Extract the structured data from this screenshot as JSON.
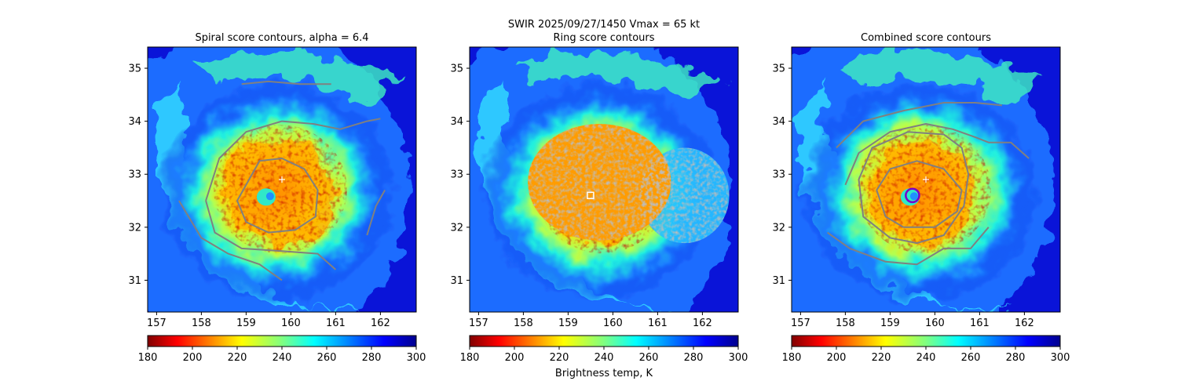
{
  "suptitle": {
    "line1": "SWIR  2025/09/27/1450    Vmax = 65 kt",
    "line2": "Ring score contours"
  },
  "chart_data": [
    {
      "type": "heatmap",
      "title": "Spiral score contours, alpha =  6.4",
      "xlim": [
        156.8,
        162.8
      ],
      "ylim": [
        30.4,
        35.4
      ],
      "xticks": [
        "157",
        "158",
        "159",
        "160",
        "161",
        "162"
      ],
      "yticks": [
        "31",
        "32",
        "33",
        "34",
        "35"
      ],
      "storm_center": [
        159.5,
        32.6
      ],
      "marker": {
        "shape": "plus",
        "lon": 159.8,
        "lat": 32.9
      },
      "colorbar": {
        "vmin": 180,
        "vmax": 300,
        "ticks": [
          "180",
          "200",
          "220",
          "240",
          "260",
          "280",
          "300"
        ],
        "label": "",
        "cmap": "jet_r"
      },
      "contours": [
        [
          [
            159.0,
            32.8
          ],
          [
            159.3,
            33.25
          ],
          [
            159.8,
            33.3
          ],
          [
            160.3,
            33.1
          ],
          [
            160.6,
            32.7
          ],
          [
            160.55,
            32.2
          ],
          [
            160.1,
            31.95
          ],
          [
            159.5,
            31.9
          ],
          [
            159.0,
            32.1
          ],
          [
            158.8,
            32.5
          ],
          [
            159.0,
            32.8
          ]
        ],
        [
          [
            158.1,
            32.5
          ],
          [
            158.4,
            33.3
          ],
          [
            159.0,
            33.8
          ],
          [
            159.8,
            34.0
          ],
          [
            160.5,
            33.95
          ],
          [
            161.1,
            33.85
          ],
          [
            161.7,
            34.0
          ],
          [
            162.0,
            34.05
          ]
        ],
        [
          [
            158.1,
            32.5
          ],
          [
            158.3,
            31.9
          ],
          [
            158.9,
            31.6
          ],
          [
            159.8,
            31.55
          ],
          [
            160.6,
            31.5
          ],
          [
            161.0,
            31.2
          ]
        ],
        [
          [
            157.5,
            32.5
          ],
          [
            158.0,
            31.8
          ],
          [
            158.6,
            31.5
          ],
          [
            159.3,
            31.3
          ],
          [
            159.8,
            31.0
          ]
        ],
        [
          [
            158.9,
            34.7
          ],
          [
            159.5,
            34.75
          ],
          [
            160.2,
            34.7
          ],
          [
            160.9,
            34.7
          ]
        ],
        [
          [
            161.7,
            31.85
          ],
          [
            161.9,
            32.4
          ],
          [
            162.1,
            32.7
          ]
        ]
      ]
    },
    {
      "type": "heatmap",
      "title": "",
      "xlim": [
        156.8,
        162.8
      ],
      "ylim": [
        30.4,
        35.4
      ],
      "xticks": [
        "157",
        "158",
        "159",
        "160",
        "161",
        "162"
      ],
      "yticks": [
        "31",
        "32",
        "33",
        "34",
        "35"
      ],
      "storm_center": [
        159.5,
        32.6
      ],
      "marker": {
        "shape": "square",
        "lon": 159.5,
        "lat": 32.6
      },
      "ring_region": {
        "center": [
          159.7,
          32.85
        ],
        "radius_lon": 1.6,
        "radius_lat": 1.1,
        "east_lobe": [
          161.6,
          32.6
        ],
        "east_radius_lon": 1.0,
        "east_radius_lat": 0.9
      },
      "colorbar": {
        "vmin": 180,
        "vmax": 300,
        "ticks": [
          "180",
          "200",
          "220",
          "240",
          "260",
          "280",
          "300"
        ],
        "label": "Brightness temp, K",
        "cmap": "jet_r"
      },
      "contours": []
    },
    {
      "type": "heatmap",
      "title": "Combined score contours",
      "xlim": [
        156.8,
        162.8
      ],
      "ylim": [
        30.4,
        35.4
      ],
      "xticks": [
        "157",
        "158",
        "159",
        "160",
        "161",
        "162"
      ],
      "yticks": [
        "31",
        "32",
        "33",
        "34",
        "35"
      ],
      "storm_center": [
        159.5,
        32.6
      ],
      "marker": {
        "shape": "plus",
        "lon": 159.8,
        "lat": 32.9
      },
      "eye_circle": {
        "lon": 159.5,
        "lat": 32.6,
        "r": 0.15
      },
      "colorbar": {
        "vmin": 180,
        "vmax": 300,
        "ticks": [
          "180",
          "200",
          "220",
          "240",
          "260",
          "280",
          "300"
        ],
        "label": "",
        "cmap": "jet_r"
      },
      "contours": [
        [
          [
            159.3,
            32.0
          ],
          [
            158.9,
            32.2
          ],
          [
            158.7,
            32.7
          ],
          [
            159.0,
            33.1
          ],
          [
            159.6,
            33.25
          ],
          [
            160.2,
            33.1
          ],
          [
            160.6,
            32.7
          ],
          [
            160.5,
            32.3
          ],
          [
            160.0,
            32.0
          ],
          [
            159.3,
            32.0
          ]
        ],
        [
          [
            159.0,
            31.8
          ],
          [
            158.4,
            32.2
          ],
          [
            158.3,
            32.9
          ],
          [
            158.6,
            33.5
          ],
          [
            159.4,
            33.8
          ],
          [
            160.2,
            33.75
          ],
          [
            160.6,
            33.5
          ],
          [
            160.75,
            33.0
          ],
          [
            160.65,
            32.4
          ],
          [
            160.2,
            31.85
          ],
          [
            159.6,
            31.7
          ],
          [
            159.0,
            31.8
          ]
        ],
        [
          [
            158.0,
            32.8
          ],
          [
            158.3,
            33.4
          ],
          [
            159.0,
            33.8
          ],
          [
            159.8,
            33.95
          ],
          [
            160.4,
            33.85
          ],
          [
            160.9,
            33.7
          ],
          [
            161.2,
            33.6
          ],
          [
            161.7,
            33.6
          ],
          [
            162.1,
            33.3
          ]
        ],
        [
          [
            157.8,
            33.5
          ],
          [
            158.4,
            34.0
          ],
          [
            159.3,
            34.2
          ],
          [
            160.2,
            34.35
          ],
          [
            160.9,
            34.35
          ],
          [
            161.5,
            34.3
          ]
        ],
        [
          [
            157.6,
            31.9
          ],
          [
            158.1,
            31.6
          ],
          [
            158.9,
            31.35
          ],
          [
            159.6,
            31.3
          ],
          [
            160.2,
            31.6
          ],
          [
            160.8,
            31.6
          ],
          [
            161.2,
            32.0
          ]
        ]
      ]
    }
  ]
}
